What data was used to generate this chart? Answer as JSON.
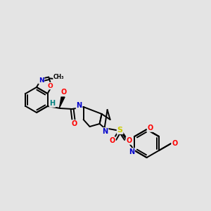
{
  "background_color": "#e4e4e4",
  "bond_color": "#000000",
  "atom_colors": {
    "N": "#0000cc",
    "O": "#ff0000",
    "S": "#cccc00",
    "H": "#008080",
    "C": "#000000"
  },
  "figsize": [
    3.0,
    3.0
  ],
  "dpi": 100
}
